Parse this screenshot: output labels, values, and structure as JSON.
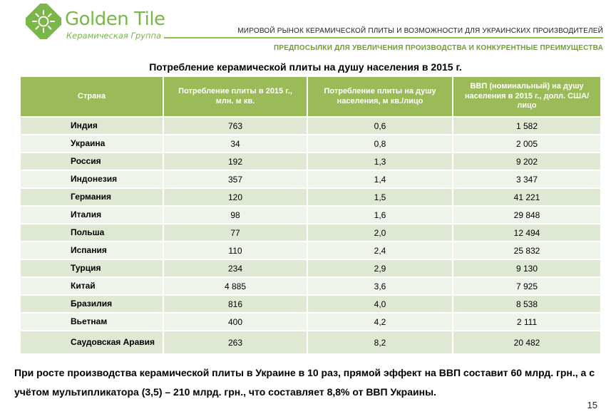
{
  "logo": {
    "name": "Golden Tile",
    "subtitle": "Керамическая Группа",
    "color": "#7ab648"
  },
  "header": {
    "title": "МИРОВОЙ РЫНОК КЕРАМИЧЕСКОЙ ПЛИТЫ И ВОЗМОЖНОСТИ ДЛЯ УКРАИНСКИХ ПРОИЗВОДИТЕЛЕЙ",
    "subtitle": "ПРЕДПОСЫЛКИ ДЛЯ УВЕЛИЧЕНИЯ ПРОИЗВОДСТВА И КОНКУРЕНТНЫЕ ПРЕИМУЩЕСТВА"
  },
  "table": {
    "title": "Потребление керамической плиты на душу населения в 2015 г.",
    "header_color": "#9bbb59",
    "columns": [
      "Страна",
      "Потребление плиты в 2015 г., млн. м кв.",
      "Потребление плиты на душу населения, м кв./лицо",
      "ВВП (номинальный) на душу населения в 2015 г., долл. США/лицо"
    ],
    "rows": [
      [
        "Индия",
        "763",
        "0,6",
        "1 582"
      ],
      [
        "Украина",
        "34",
        "0,8",
        "2 005"
      ],
      [
        "Россия",
        "192",
        "1,3",
        "9 202"
      ],
      [
        "Индонезия",
        "357",
        "1,4",
        "3 347"
      ],
      [
        "Германия",
        "120",
        "1,5",
        "41 221"
      ],
      [
        "Италия",
        "98",
        "1,6",
        "29 848"
      ],
      [
        "Польша",
        "77",
        "2,0",
        "12 494"
      ],
      [
        "Испания",
        "110",
        "2,4",
        "25 832"
      ],
      [
        "Турция",
        "234",
        "2,9",
        "9 130"
      ],
      [
        "Китай",
        "4 885",
        "3,6",
        "7 925"
      ],
      [
        "Бразилия",
        "816",
        "4,0",
        "8 538"
      ],
      [
        "Вьетнам",
        "400",
        "4,2",
        "2 111"
      ],
      [
        "Саудовская Аравия",
        "263",
        "8,2",
        "20 482"
      ]
    ]
  },
  "footer": {
    "text": "При росте производства керамической плиты в Украине в 10 раз, прямой эффект на ВВП составит 60 млрд. грн., а с учётом мультипликатора (3,5) – 210 млрд. грн., что составляет 8,8% от ВВП Украины."
  },
  "page_number": "15"
}
